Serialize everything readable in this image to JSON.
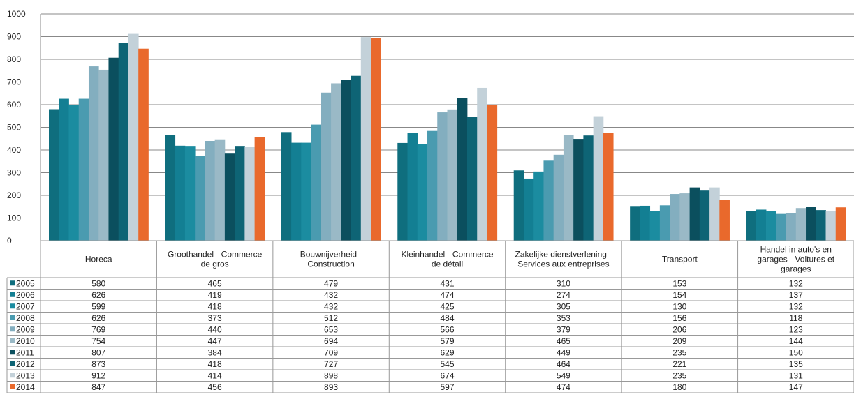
{
  "chart_data": {
    "type": "bar",
    "ylim": [
      0,
      1000
    ],
    "yticks": [
      0,
      100,
      200,
      300,
      400,
      500,
      600,
      700,
      800,
      900,
      1000
    ],
    "grid": true,
    "legend": "data-table-left",
    "categories": [
      [
        "Horeca"
      ],
      [
        "Groothandel - Commerce",
        "de gros"
      ],
      [
        "Bouwnijverheid -",
        "Construction"
      ],
      [
        "Kleinhandel - Commerce",
        "de détail"
      ],
      [
        "Zakelijke dienstverlening -",
        "Services aux entreprises"
      ],
      [
        "Transport"
      ],
      [
        "Handel in auto's en",
        "garages - Voitures et",
        "garages"
      ]
    ],
    "series": [
      {
        "name": "2005",
        "color": "#0f6e7e",
        "values": [
          580,
          465,
          479,
          431,
          310,
          153,
          132
        ]
      },
      {
        "name": "2006",
        "color": "#137f93",
        "values": [
          626,
          419,
          432,
          474,
          274,
          154,
          137
        ]
      },
      {
        "name": "2007",
        "color": "#1b8ca0",
        "values": [
          599,
          418,
          432,
          425,
          305,
          130,
          132
        ]
      },
      {
        "name": "2008",
        "color": "#4a9bb0",
        "values": [
          626,
          373,
          512,
          484,
          353,
          156,
          118
        ]
      },
      {
        "name": "2009",
        "color": "#83aebf",
        "values": [
          769,
          440,
          653,
          566,
          379,
          206,
          123
        ]
      },
      {
        "name": "2010",
        "color": "#9ab9c6",
        "values": [
          754,
          447,
          694,
          579,
          465,
          209,
          144
        ]
      },
      {
        "name": "2011",
        "color": "#0b4f5e",
        "values": [
          807,
          384,
          709,
          629,
          449,
          235,
          150
        ]
      },
      {
        "name": "2012",
        "color": "#0e6475",
        "values": [
          873,
          418,
          727,
          545,
          464,
          221,
          135
        ]
      },
      {
        "name": "2013",
        "color": "#c3d1d9",
        "values": [
          912,
          414,
          898,
          674,
          549,
          235,
          131
        ]
      },
      {
        "name": "2014",
        "color": "#e9692c",
        "values": [
          847,
          456,
          893,
          597,
          474,
          180,
          147
        ]
      }
    ]
  }
}
